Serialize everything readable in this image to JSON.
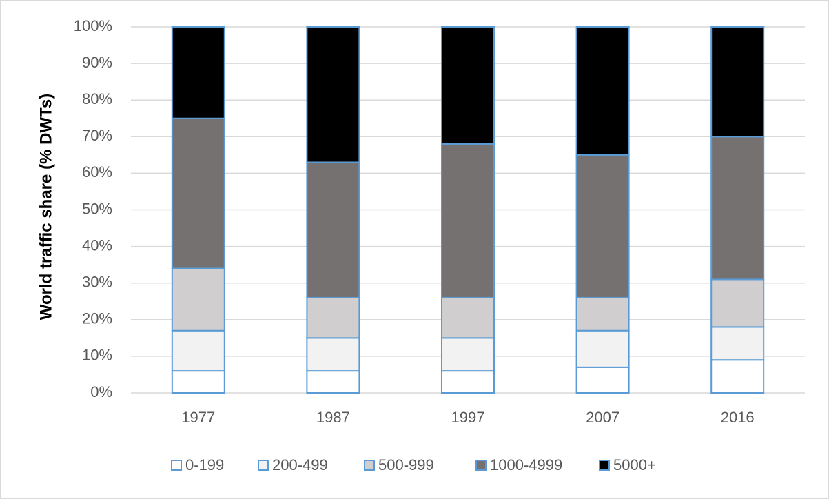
{
  "chart_data": {
    "type": "stacked_bar",
    "y_label": "World traffic share (% DWTs)",
    "categories": [
      "1977",
      "1987",
      "1997",
      "2007",
      "2016"
    ],
    "series": [
      {
        "name": "0-199",
        "color": "#ffffff",
        "values": [
          6,
          6,
          6,
          7,
          9
        ]
      },
      {
        "name": "200-499",
        "color": "#f2f2f2",
        "values": [
          11,
          9,
          9,
          10,
          9
        ]
      },
      {
        "name": "500-999",
        "color": "#d0cece",
        "values": [
          17,
          11,
          11,
          9,
          13
        ]
      },
      {
        "name": "1000-4999",
        "color": "#767171",
        "values": [
          41,
          37,
          42,
          39,
          39
        ]
      },
      {
        "name": "5000+",
        "color": "#000000",
        "values": [
          25,
          37,
          32,
          35,
          30
        ]
      }
    ],
    "ylim": [
      0,
      100
    ],
    "yticks": [
      {
        "value": 0,
        "label": "0%"
      },
      {
        "value": 10,
        "label": "10%"
      },
      {
        "value": 20,
        "label": "20%"
      },
      {
        "value": 30,
        "label": "30%"
      },
      {
        "value": 40,
        "label": "40%"
      },
      {
        "value": 50,
        "label": "50%"
      },
      {
        "value": 60,
        "label": "60%"
      },
      {
        "value": 70,
        "label": "70%"
      },
      {
        "value": 80,
        "label": "80%"
      },
      {
        "value": 90,
        "label": "90%"
      },
      {
        "value": 100,
        "label": "100%"
      }
    ],
    "grid": true,
    "legend": "bottom",
    "edge_color": "#5b9bd5"
  }
}
